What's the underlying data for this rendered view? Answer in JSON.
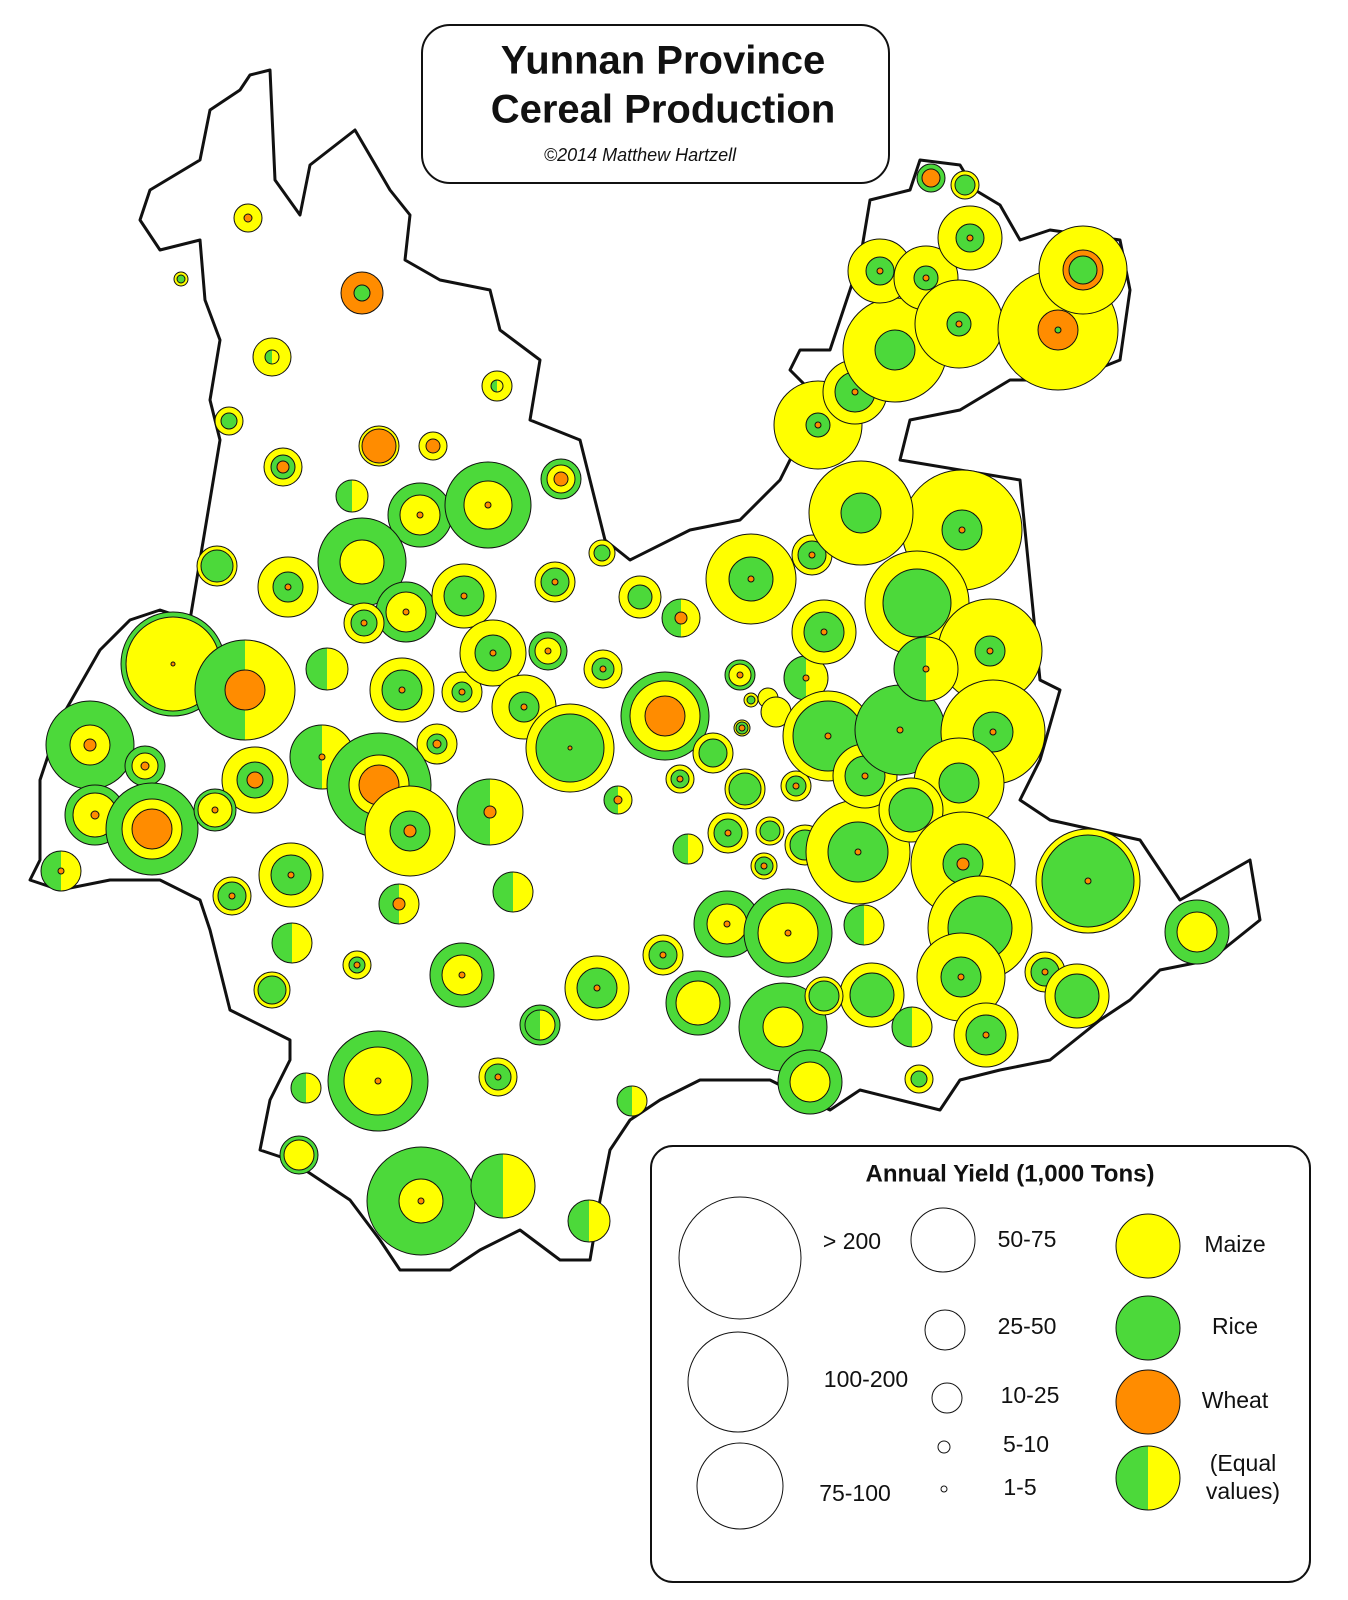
{
  "header": {
    "title_lines": [
      "Yunnan Province",
      "Cereal Production"
    ],
    "credit": "©2014  Matthew Hartzell"
  },
  "legend": {
    "title": "Annual Yield (1,000 Tons)",
    "size_classes": [
      "> 200",
      "100-200",
      "75-100",
      "50-75",
      "25-50",
      "10-25",
      "5-10",
      "1-5"
    ],
    "crops": [
      {
        "label": "Maize",
        "color": "#ffff00"
      },
      {
        "label": "Rice",
        "color": "#4cd93a"
      },
      {
        "label": "Wheat",
        "color": "#ff8c00"
      },
      {
        "label_lines": [
          "(Equal",
          "values)"
        ]
      }
    ]
  }
}
